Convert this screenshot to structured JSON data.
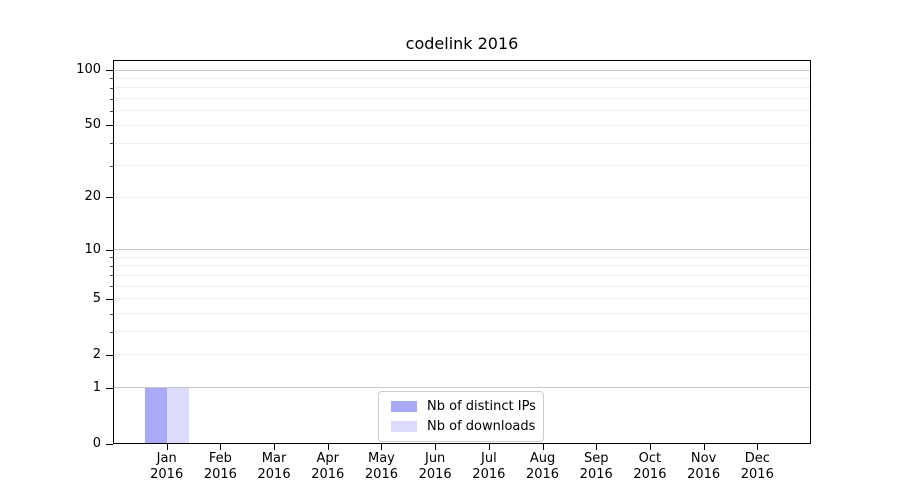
{
  "chart_data": {
    "type": "bar",
    "title": "codelink 2016",
    "categories": [
      {
        "month": "Jan",
        "year": "2016"
      },
      {
        "month": "Feb",
        "year": "2016"
      },
      {
        "month": "Mar",
        "year": "2016"
      },
      {
        "month": "Apr",
        "year": "2016"
      },
      {
        "month": "May",
        "year": "2016"
      },
      {
        "month": "Jun",
        "year": "2016"
      },
      {
        "month": "Jul",
        "year": "2016"
      },
      {
        "month": "Aug",
        "year": "2016"
      },
      {
        "month": "Sep",
        "year": "2016"
      },
      {
        "month": "Oct",
        "year": "2016"
      },
      {
        "month": "Nov",
        "year": "2016"
      },
      {
        "month": "Dec",
        "year": "2016"
      }
    ],
    "series": [
      {
        "name": "Nb of distinct IPs",
        "color": "#a9a9f5",
        "values": [
          1,
          0,
          0,
          0,
          0,
          0,
          0,
          0,
          0,
          0,
          0,
          0
        ]
      },
      {
        "name": "Nb of downloads",
        "color": "#dcdcfa",
        "values": [
          1,
          0,
          0,
          0,
          0,
          0,
          0,
          0,
          0,
          0,
          0,
          0
        ]
      }
    ],
    "y_axis": {
      "scale": "log1p",
      "ticks": [
        0,
        1,
        2,
        5,
        10,
        20,
        50,
        100
      ],
      "major_gridlines": [
        1,
        10,
        100
      ],
      "minor_gridlines": [
        2,
        3,
        4,
        5,
        6,
        7,
        8,
        9,
        20,
        30,
        40,
        50,
        60,
        70,
        80,
        90
      ],
      "range": [
        0,
        113
      ]
    },
    "x_axis": {
      "label_lines": 2
    },
    "grid": true,
    "legend": {
      "position": "lower center",
      "entries": [
        "Nb of distinct IPs",
        "Nb of downloads"
      ]
    }
  }
}
